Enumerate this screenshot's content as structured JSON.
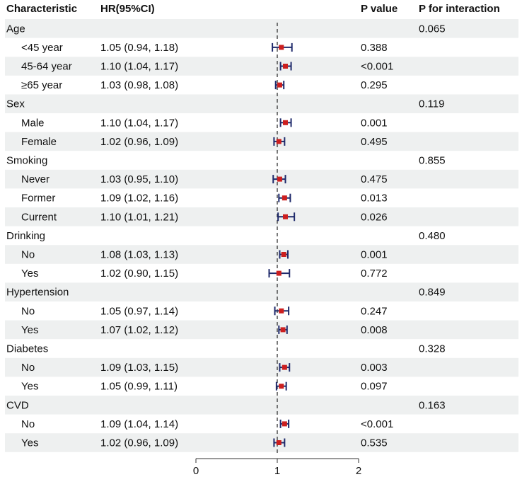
{
  "headers": {
    "characteristic": "Characteristic",
    "hr": "HR(95%CI)",
    "p_value": "P value",
    "p_interaction": "P for interaction"
  },
  "axis": {
    "ticks": [
      "0",
      "1",
      "2"
    ]
  },
  "colors": {
    "stripe": "#eef0f0",
    "ci_line": "#1f2a6b",
    "point": "#cc1f1f",
    "reference_line": "#222222"
  },
  "chart_data": {
    "type": "forest",
    "xlim": [
      0,
      2
    ],
    "x_ticks": [
      0,
      1,
      2
    ],
    "reference_value": 1,
    "reference_line_style": "dashed",
    "rows": [
      {
        "group": "Age",
        "p_interaction": "0.065"
      },
      {
        "label": "<45 year",
        "hr_text": "1.05 (0.94, 1.18)",
        "hr": 1.05,
        "lo": 0.94,
        "hi": 1.18,
        "p": "0.388"
      },
      {
        "label": "45-64 year",
        "hr_text": "1.10 (1.04, 1.17)",
        "hr": 1.1,
        "lo": 1.04,
        "hi": 1.17,
        "p": "<0.001"
      },
      {
        "label": "≥65 year",
        "hr_text": "1.03 (0.98, 1.08)",
        "hr": 1.03,
        "lo": 0.98,
        "hi": 1.08,
        "p": "0.295"
      },
      {
        "group": "Sex",
        "p_interaction": "0.119"
      },
      {
        "label": "Male",
        "hr_text": "1.10 (1.04, 1.17)",
        "hr": 1.1,
        "lo": 1.04,
        "hi": 1.17,
        "p": "0.001"
      },
      {
        "label": "Female",
        "hr_text": "1.02 (0.96, 1.09)",
        "hr": 1.02,
        "lo": 0.96,
        "hi": 1.09,
        "p": "0.495"
      },
      {
        "group": "Smoking",
        "p_interaction": "0.855"
      },
      {
        "label": "Never",
        "hr_text": "1.03 (0.95, 1.10)",
        "hr": 1.03,
        "lo": 0.95,
        "hi": 1.1,
        "p": "0.475"
      },
      {
        "label": "Former",
        "hr_text": "1.09 (1.02, 1.16)",
        "hr": 1.09,
        "lo": 1.02,
        "hi": 1.16,
        "p": "0.013"
      },
      {
        "label": "Current",
        "hr_text": "1.10 (1.01, 1.21)",
        "hr": 1.1,
        "lo": 1.01,
        "hi": 1.21,
        "p": "0.026"
      },
      {
        "group": "Drinking",
        "p_interaction": "0.480"
      },
      {
        "label": "No",
        "hr_text": "1.08 (1.03, 1.13)",
        "hr": 1.08,
        "lo": 1.03,
        "hi": 1.13,
        "p": "0.001"
      },
      {
        "label": "Yes",
        "hr_text": "1.02 (0.90, 1.15)",
        "hr": 1.02,
        "lo": 0.9,
        "hi": 1.15,
        "p": "0.772"
      },
      {
        "group": "Hypertension",
        "p_interaction": "0.849"
      },
      {
        "label": "No",
        "hr_text": "1.05 (0.97, 1.14)",
        "hr": 1.05,
        "lo": 0.97,
        "hi": 1.14,
        "p": "0.247"
      },
      {
        "label": "Yes",
        "hr_text": "1.07 (1.02, 1.12)",
        "hr": 1.07,
        "lo": 1.02,
        "hi": 1.12,
        "p": "0.008"
      },
      {
        "group": "Diabetes",
        "p_interaction": "0.328"
      },
      {
        "label": "No",
        "hr_text": "1.09 (1.03, 1.15)",
        "hr": 1.09,
        "lo": 1.03,
        "hi": 1.15,
        "p": "0.003"
      },
      {
        "label": "Yes",
        "hr_text": "1.05 (0.99, 1.11)",
        "hr": 1.05,
        "lo": 0.99,
        "hi": 1.11,
        "p": "0.097"
      },
      {
        "group": "CVD",
        "p_interaction": "0.163"
      },
      {
        "label": "No",
        "hr_text": "1.09 (1.04, 1.14)",
        "hr": 1.09,
        "lo": 1.04,
        "hi": 1.14,
        "p": "<0.001"
      },
      {
        "label": "Yes",
        "hr_text": "1.02 (0.96, 1.09)",
        "hr": 1.02,
        "lo": 0.96,
        "hi": 1.09,
        "p": "0.535"
      }
    ]
  }
}
